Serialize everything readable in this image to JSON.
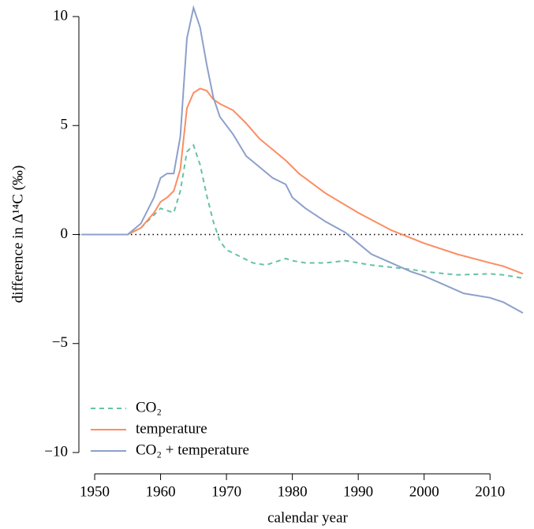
{
  "chart_data": {
    "type": "line",
    "xlabel": "calendar year",
    "ylabel": "difference in Δ¹⁴C (‰)",
    "xlim": [
      1947.6,
      2015
    ],
    "ylim": [
      -10,
      10
    ],
    "xticks": [
      1950,
      1960,
      1970,
      1980,
      1990,
      2000,
      2010
    ],
    "yticks": [
      {
        "value": -10,
        "label": "−10"
      },
      {
        "value": -5,
        "label": "−5"
      },
      0,
      5,
      10
    ],
    "hline": 0,
    "legend": "lower left",
    "series": [
      {
        "name": "CO₂",
        "color": "#66c2a5",
        "linestyle": "dashed",
        "x": [
          1948,
          1955,
          1957,
          1959,
          1960,
          1961,
          1962,
          1963,
          1964,
          1965,
          1966,
          1967,
          1968,
          1969,
          1970,
          1972,
          1974,
          1976,
          1978,
          1979,
          1980,
          1982,
          1985,
          1988,
          1990,
          1992,
          1995,
          1998,
          2000,
          2005,
          2010,
          2012,
          2015
        ],
        "values": [
          0,
          0,
          0.3,
          0.9,
          1.2,
          1.1,
          1.0,
          2.0,
          3.8,
          4.1,
          3.2,
          1.8,
          0.6,
          -0.3,
          -0.7,
          -1.0,
          -1.3,
          -1.4,
          -1.2,
          -1.1,
          -1.2,
          -1.3,
          -1.3,
          -1.2,
          -1.3,
          -1.4,
          -1.5,
          -1.6,
          -1.7,
          -1.85,
          -1.8,
          -1.85,
          -2.0
        ]
      },
      {
        "name": "temperature",
        "color": "#fc8d62",
        "linestyle": "solid",
        "x": [
          1948,
          1955,
          1957,
          1959,
          1960,
          1961,
          1962,
          1963,
          1964,
          1965,
          1966,
          1967,
          1968,
          1969,
          1971,
          1973,
          1975,
          1977,
          1979,
          1981,
          1985,
          1990,
          1995,
          2000,
          2005,
          2010,
          2012,
          2015
        ],
        "values": [
          0,
          0,
          0.3,
          1.0,
          1.5,
          1.7,
          2.0,
          3.0,
          5.8,
          6.5,
          6.7,
          6.6,
          6.2,
          6.0,
          5.7,
          5.1,
          4.4,
          3.9,
          3.4,
          2.8,
          1.9,
          1.0,
          0.2,
          -0.4,
          -0.9,
          -1.3,
          -1.45,
          -1.8
        ]
      },
      {
        "name": "CO₂ + temperature",
        "color": "#8da0cb",
        "linestyle": "solid",
        "x": [
          1948,
          1955,
          1957,
          1959,
          1960,
          1961,
          1962,
          1963,
          1964,
          1965,
          1966,
          1967,
          1968,
          1969,
          1971,
          1973,
          1975,
          1977,
          1979,
          1980,
          1982,
          1985,
          1988,
          1990,
          1992,
          1995,
          1998,
          2000,
          2003,
          2006,
          2010,
          2012,
          2015
        ],
        "values": [
          0,
          0,
          0.5,
          1.7,
          2.6,
          2.8,
          2.8,
          4.5,
          9.0,
          10.4,
          9.5,
          7.8,
          6.3,
          5.4,
          4.6,
          3.6,
          3.1,
          2.6,
          2.3,
          1.7,
          1.2,
          0.6,
          0.1,
          -0.4,
          -0.9,
          -1.3,
          -1.7,
          -1.9,
          -2.3,
          -2.7,
          -2.9,
          -3.1,
          -3.6
        ]
      }
    ]
  }
}
